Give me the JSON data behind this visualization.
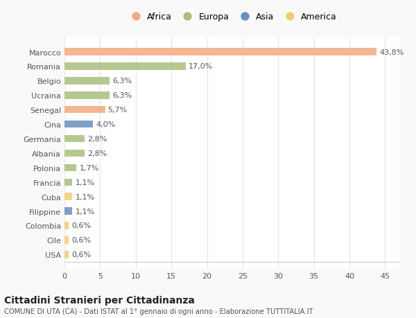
{
  "countries": [
    "Marocco",
    "Romania",
    "Belgio",
    "Ucraina",
    "Senegal",
    "Cina",
    "Germania",
    "Albania",
    "Polonia",
    "Francia",
    "Cuba",
    "Filippine",
    "Colombia",
    "Cile",
    "USA"
  ],
  "values": [
    43.8,
    17.0,
    6.3,
    6.3,
    5.7,
    4.0,
    2.8,
    2.8,
    1.7,
    1.1,
    1.1,
    1.1,
    0.6,
    0.6,
    0.6
  ],
  "labels": [
    "43,8%",
    "17,0%",
    "6,3%",
    "6,3%",
    "5,7%",
    "4,0%",
    "2,8%",
    "2,8%",
    "1,7%",
    "1,1%",
    "1,1%",
    "1,1%",
    "0,6%",
    "0,6%",
    "0,6%"
  ],
  "continents": [
    "Africa",
    "Europa",
    "Europa",
    "Europa",
    "Africa",
    "Asia",
    "Europa",
    "Europa",
    "Europa",
    "Europa",
    "America",
    "Asia",
    "America",
    "America",
    "America"
  ],
  "continent_colors": {
    "Africa": "#F4A97F",
    "Europa": "#AABF7E",
    "Asia": "#6A8FC4",
    "America": "#F5CC6A"
  },
  "legend_order": [
    "Africa",
    "Europa",
    "Asia",
    "America"
  ],
  "bg_color": "#F9F9F9",
  "plot_bg_color": "#FFFFFF",
  "grid_color": "#E8E8E8",
  "title": "Cittadini Stranieri per Cittadinanza",
  "subtitle": "COMUNE DI UTA (CA) - Dati ISTAT al 1° gennaio di ogni anno - Elaborazione TUTTITALIA.IT",
  "xlim": [
    0,
    47
  ],
  "xticks": [
    0,
    5,
    10,
    15,
    20,
    25,
    30,
    35,
    40,
    45
  ],
  "bar_height": 0.5,
  "label_fontsize": 8,
  "tick_fontsize": 8,
  "legend_fontsize": 9
}
